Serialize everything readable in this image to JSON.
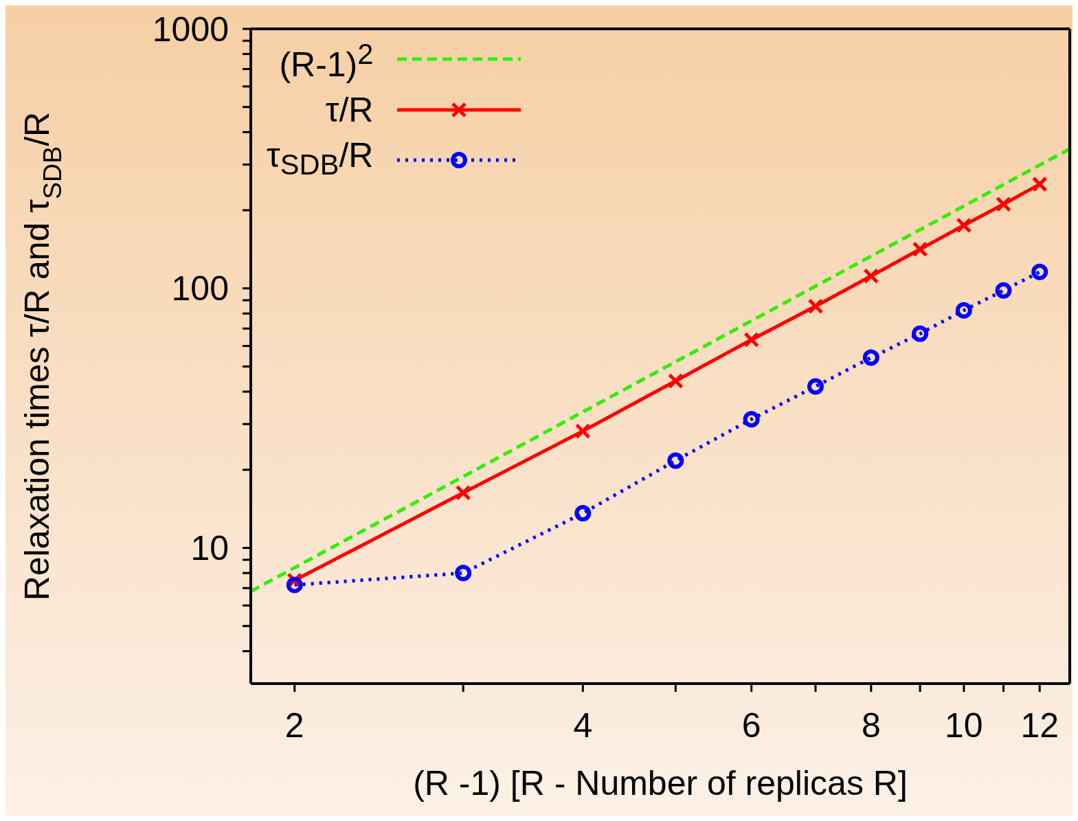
{
  "chart_data": {
    "type": "line",
    "xlabel": "(R -1) [R - Number of replicas R]",
    "ylabel": "Relaxation times τ/R and τ$_{SDB}$/R",
    "log": "xy",
    "xlim": [
      1.8,
      12.9
    ],
    "ylim": [
      3,
      1000
    ],
    "xticks": [
      2,
      {
        "value": 3,
        "label": null
      },
      4,
      {
        "value": 5,
        "label": null
      },
      6,
      {
        "value": 7,
        "label": null
      },
      8,
      {
        "value": 9,
        "label": null
      },
      10,
      {
        "value": 11,
        "label": null
      },
      12
    ],
    "yticks": [
      {
        "value": 4,
        "label": null
      },
      {
        "value": 5,
        "label": null
      },
      {
        "value": 6,
        "label": null
      },
      {
        "value": 7,
        "label": null
      },
      {
        "value": 8,
        "label": null
      },
      {
        "value": 9,
        "label": null
      },
      10,
      {
        "value": 20,
        "label": null
      },
      {
        "value": 30,
        "label": null
      },
      {
        "value": 40,
        "label": null
      },
      {
        "value": 50,
        "label": null
      },
      {
        "value": 60,
        "label": null
      },
      {
        "value": 70,
        "label": null
      },
      {
        "value": 80,
        "label": null
      },
      {
        "value": 90,
        "label": null
      },
      100,
      {
        "value": 200,
        "label": null
      },
      {
        "value": 300,
        "label": null
      },
      {
        "value": 400,
        "label": null
      },
      {
        "value": 500,
        "label": null
      },
      {
        "value": 600,
        "label": null
      },
      {
        "value": 700,
        "label": null
      },
      {
        "value": 800,
        "label": null
      },
      {
        "value": 900,
        "label": null
      },
      1000
    ],
    "legend": "top left",
    "series": [
      {
        "name": "(R-1)$^{2}$",
        "color": "#33ee00",
        "line_style": "dashed",
        "marker": "none",
        "x": [
          1.8,
          12.9
        ],
        "values": [
          6.8,
          345
        ]
      },
      {
        "name": "τ/R",
        "color": "#ff0000",
        "line_style": "solid",
        "marker": "cross",
        "x": [
          2,
          3,
          4,
          5,
          6,
          7,
          8,
          9,
          10,
          11,
          12
        ],
        "values": [
          7.5,
          16.3,
          28.2,
          44,
          63.4,
          85.3,
          111.6,
          141.5,
          175,
          211,
          252
        ]
      },
      {
        "name": "τ$_{SDB}$/R",
        "color": "#0000ff",
        "line_style": "dotted",
        "marker": "circle",
        "x": [
          2,
          3,
          4,
          5,
          6,
          7,
          8,
          9,
          10,
          11,
          12
        ],
        "values": [
          7.2,
          8.0,
          13.6,
          21.7,
          31.3,
          41.9,
          54.1,
          66.9,
          82.3,
          98.2,
          115.7
        ]
      }
    ]
  }
}
